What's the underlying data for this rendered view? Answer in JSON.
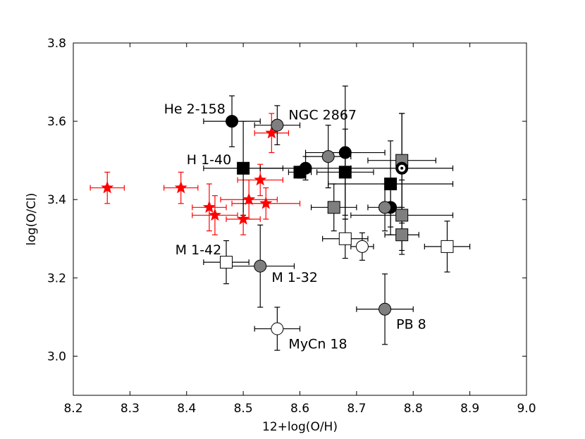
{
  "chart_data": {
    "type": "scatter",
    "title": "",
    "xlabel": "12+log(O/H)",
    "ylabel": "log(O/Cl)",
    "xlim": [
      8.2,
      9.0
    ],
    "ylim": [
      2.9,
      3.8
    ],
    "xticks": [
      "8.2",
      "8.3",
      "8.4",
      "8.5",
      "8.6",
      "8.7",
      "8.8",
      "8.9",
      "9.0"
    ],
    "yticks": [
      "3.0",
      "3.2",
      "3.4",
      "3.6",
      "3.8"
    ],
    "series": [
      {
        "name": "red stars",
        "marker": "star",
        "color": "#ff0000",
        "points": [
          {
            "x": 8.26,
            "y": 3.43,
            "xerr": 0.03,
            "yerr": 0.04
          },
          {
            "x": 8.39,
            "y": 3.43,
            "xerr": 0.03,
            "yerr": 0.04
          },
          {
            "x": 8.44,
            "y": 3.38,
            "xerr": 0.03,
            "yerr": 0.06
          },
          {
            "x": 8.45,
            "y": 3.36,
            "xerr": 0.04,
            "yerr": 0.05
          },
          {
            "x": 8.5,
            "y": 3.35,
            "xerr": 0.03,
            "yerr": 0.04
          },
          {
            "x": 8.51,
            "y": 3.4,
            "xerr": 0.05,
            "yerr": 0.05
          },
          {
            "x": 8.53,
            "y": 3.45,
            "xerr": 0.04,
            "yerr": 0.04
          },
          {
            "x": 8.54,
            "y": 3.39,
            "xerr": 0.06,
            "yerr": 0.04
          },
          {
            "x": 8.55,
            "y": 3.57,
            "xerr": 0.03,
            "yerr": 0.05
          }
        ]
      },
      {
        "name": "black circles",
        "marker": "circle",
        "color": "#000000",
        "points": [
          {
            "x": 8.48,
            "y": 3.6,
            "xerr": 0.05,
            "yerr": 0.065
          },
          {
            "x": 8.61,
            "y": 3.48,
            "xerr": 0.08,
            "yerr": 0.03
          },
          {
            "x": 8.68,
            "y": 3.52,
            "xerr": 0.07,
            "yerr": 0.17
          },
          {
            "x": 8.76,
            "y": 3.38,
            "xerr": 0.02,
            "yerr": 0.07
          }
        ]
      },
      {
        "name": "black squares",
        "marker": "square",
        "color": "#000000",
        "points": [
          {
            "x": 8.5,
            "y": 3.48,
            "xerr": 0.07,
            "yerr": 0.12
          },
          {
            "x": 8.6,
            "y": 3.47,
            "xerr": 0.02,
            "yerr": 0.015
          },
          {
            "x": 8.68,
            "y": 3.47,
            "xerr": 0.05,
            "yerr": 0.11
          },
          {
            "x": 8.76,
            "y": 3.44,
            "xerr": 0.11,
            "yerr": 0.11
          }
        ]
      },
      {
        "name": "gray circles",
        "marker": "circle",
        "color": "#7f7f7f",
        "points": [
          {
            "x": 8.56,
            "y": 3.59,
            "xerr": 0.04,
            "yerr": 0.05
          },
          {
            "x": 8.65,
            "y": 3.51,
            "xerr": 0.04,
            "yerr": 0.08
          },
          {
            "x": 8.75,
            "y": 3.38,
            "xerr": 0.03,
            "yerr": 0.06
          },
          {
            "x": 8.53,
            "y": 3.23,
            "xerr": 0.06,
            "yerr": 0.105
          },
          {
            "x": 8.75,
            "y": 3.12,
            "xerr": 0.05,
            "yerr": 0.09
          }
        ]
      },
      {
        "name": "gray squares",
        "marker": "square",
        "color": "#7f7f7f",
        "points": [
          {
            "x": 8.78,
            "y": 3.5,
            "xerr": 0.06,
            "yerr": 0.12
          },
          {
            "x": 8.66,
            "y": 3.38,
            "xerr": 0.04,
            "yerr": 0.06
          },
          {
            "x": 8.78,
            "y": 3.36,
            "xerr": 0.09,
            "yerr": 0.09
          },
          {
            "x": 8.78,
            "y": 3.31,
            "xerr": 0.03,
            "yerr": 0.05
          }
        ]
      },
      {
        "name": "white circles",
        "marker": "circle",
        "color": "#ffffff",
        "points": [
          {
            "x": 8.71,
            "y": 3.28,
            "xerr": 0.02,
            "yerr": 0.035
          },
          {
            "x": 8.56,
            "y": 3.07,
            "xerr": 0.04,
            "yerr": 0.055
          }
        ]
      },
      {
        "name": "white squares",
        "marker": "square",
        "color": "#ffffff",
        "points": [
          {
            "x": 8.68,
            "y": 3.3,
            "xerr": 0.04,
            "yerr": 0.05
          },
          {
            "x": 8.86,
            "y": 3.28,
            "xerr": 0.04,
            "yerr": 0.065
          },
          {
            "x": 8.47,
            "y": 3.24,
            "xerr": 0.04,
            "yerr": 0.055
          }
        ]
      },
      {
        "name": "sun",
        "marker": "sun",
        "color": "#000000",
        "points": [
          {
            "x": 8.78,
            "y": 3.48,
            "xerr": 0.09,
            "yerr": 0.14
          }
        ]
      }
    ],
    "annotations": [
      {
        "text": "He 2-158",
        "x": 8.36,
        "y": 3.62
      },
      {
        "text": "NGC 2867",
        "x": 8.58,
        "y": 3.605
      },
      {
        "text": "H 1-40",
        "x": 8.4,
        "y": 3.49
      },
      {
        "text": "M 1-42",
        "x": 8.38,
        "y": 3.26
      },
      {
        "text": "M 1-32",
        "x": 8.55,
        "y": 3.19
      },
      {
        "text": "PB 8",
        "x": 8.77,
        "y": 3.07
      },
      {
        "text": "MyCn 18",
        "x": 8.58,
        "y": 3.02
      }
    ]
  }
}
